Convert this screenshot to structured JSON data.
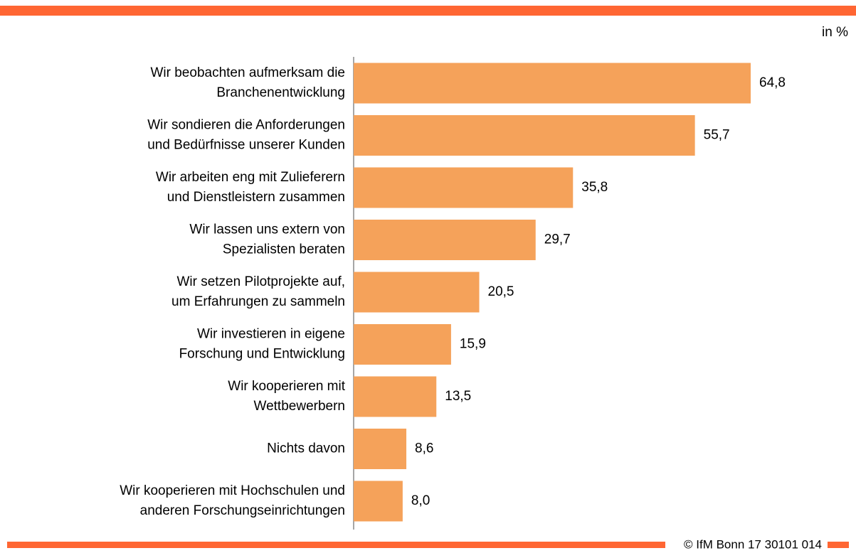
{
  "chart_data": {
    "type": "hbar",
    "unit_label": "in %",
    "footer": "© IfM Bonn 17 30101 014",
    "color": "#f5a25a",
    "categories": [
      "Wir beobachten aufmerksam die\nBranchenentwicklung",
      "Wir sondieren die Anforderungen\nund Bedürfnisse unserer Kunden",
      "Wir arbeiten eng mit Zulieferern\nund Dienstleistern zusammen",
      "Wir lassen uns extern von\nSpezialisten beraten",
      "Wir setzen Pilotprojekte auf,\num Erfahrungen zu sammeln",
      "Wir investieren in eigene\nForschung und Entwicklung",
      "Wir kooperieren mit\nWettbewerbern",
      "Nichts davon",
      "Wir kooperieren mit Hochschulen und\nanderen Forschungseinrichtungen"
    ],
    "values": [
      64.8,
      55.7,
      35.8,
      29.7,
      20.5,
      15.9,
      13.5,
      8.6,
      8.0
    ],
    "value_labels": [
      "64,8",
      "55,7",
      "35,8",
      "29,7",
      "20,5",
      "15,9",
      "13,5",
      "8,6",
      "8,0"
    ]
  }
}
